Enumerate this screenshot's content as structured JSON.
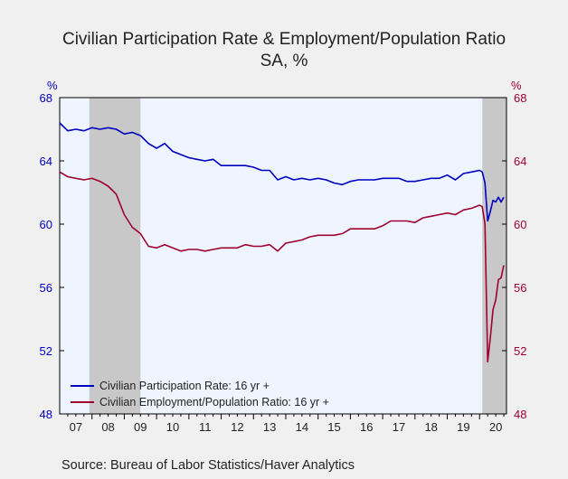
{
  "title": "Civilian Participation Rate & Employment/Population Ratio",
  "subtitle": "SA, %",
  "source": "Source:  Bureau of Labor Statistics/Haver Analytics",
  "colors": {
    "series_participation": "#0000c0",
    "series_employment": "#a00030",
    "plot_background": "#eef5ff",
    "recession_shading": "#c8c8c8",
    "page_background": "#f0f0f0"
  },
  "chart_data": {
    "type": "line",
    "title": "Civilian Participation Rate & Employment/Population Ratio",
    "subtitle": "SA, %",
    "left_axis": {
      "unit": "%",
      "ylim": [
        48,
        68
      ],
      "ticks": [
        "48",
        "52",
        "56",
        "60",
        "64",
        "68"
      ]
    },
    "right_axis": {
      "unit": "%",
      "ylim": [
        48,
        68
      ],
      "ticks": [
        "48",
        "52",
        "56",
        "60",
        "64",
        "68"
      ]
    },
    "xlim": [
      "2007-01",
      "2020-10"
    ],
    "x_tick_labels": [
      "07",
      "08",
      "09",
      "10",
      "11",
      "12",
      "13",
      "14",
      "15",
      "16",
      "17",
      "18",
      "19",
      "20"
    ],
    "recessions": [
      {
        "start": "2007-12",
        "end": "2009-06"
      },
      {
        "start": "2020-02",
        "end": "2020-10"
      }
    ],
    "legend_position": "bottom-left",
    "grid": false,
    "series": [
      {
        "name": "Civilian Participation Rate: 16 yr +",
        "axis": "left",
        "points": [
          [
            "2007-01",
            66.4
          ],
          [
            "2007-04",
            65.9
          ],
          [
            "2007-07",
            66.0
          ],
          [
            "2007-10",
            65.9
          ],
          [
            "2008-01",
            66.1
          ],
          [
            "2008-04",
            66.0
          ],
          [
            "2008-07",
            66.1
          ],
          [
            "2008-10",
            66.0
          ],
          [
            "2009-01",
            65.7
          ],
          [
            "2009-04",
            65.8
          ],
          [
            "2009-07",
            65.6
          ],
          [
            "2009-10",
            65.1
          ],
          [
            "2010-01",
            64.8
          ],
          [
            "2010-04",
            65.1
          ],
          [
            "2010-07",
            64.6
          ],
          [
            "2010-10",
            64.4
          ],
          [
            "2011-01",
            64.2
          ],
          [
            "2011-04",
            64.1
          ],
          [
            "2011-07",
            64.0
          ],
          [
            "2011-10",
            64.1
          ],
          [
            "2012-01",
            63.7
          ],
          [
            "2012-04",
            63.7
          ],
          [
            "2012-07",
            63.7
          ],
          [
            "2012-10",
            63.7
          ],
          [
            "2013-01",
            63.6
          ],
          [
            "2013-04",
            63.4
          ],
          [
            "2013-07",
            63.4
          ],
          [
            "2013-10",
            62.8
          ],
          [
            "2014-01",
            63.0
          ],
          [
            "2014-04",
            62.8
          ],
          [
            "2014-07",
            62.9
          ],
          [
            "2014-10",
            62.8
          ],
          [
            "2015-01",
            62.9
          ],
          [
            "2015-04",
            62.8
          ],
          [
            "2015-07",
            62.6
          ],
          [
            "2015-10",
            62.5
          ],
          [
            "2016-01",
            62.7
          ],
          [
            "2016-04",
            62.8
          ],
          [
            "2016-07",
            62.8
          ],
          [
            "2016-10",
            62.8
          ],
          [
            "2017-01",
            62.9
          ],
          [
            "2017-04",
            62.9
          ],
          [
            "2017-07",
            62.9
          ],
          [
            "2017-10",
            62.7
          ],
          [
            "2018-01",
            62.7
          ],
          [
            "2018-04",
            62.8
          ],
          [
            "2018-07",
            62.9
          ],
          [
            "2018-10",
            62.9
          ],
          [
            "2019-01",
            63.1
          ],
          [
            "2019-04",
            62.8
          ],
          [
            "2019-07",
            63.2
          ],
          [
            "2019-10",
            63.3
          ],
          [
            "2020-01",
            63.4
          ],
          [
            "2020-02",
            63.3
          ],
          [
            "2020-03",
            62.6
          ],
          [
            "2020-04",
            60.2
          ],
          [
            "2020-05",
            60.8
          ],
          [
            "2020-06",
            61.5
          ],
          [
            "2020-07",
            61.4
          ],
          [
            "2020-08",
            61.7
          ],
          [
            "2020-09",
            61.4
          ],
          [
            "2020-10",
            61.7
          ]
        ]
      },
      {
        "name": "Civilian Employment/Population Ratio: 16 yr +",
        "axis": "right",
        "points": [
          [
            "2007-01",
            63.3
          ],
          [
            "2007-04",
            63.0
          ],
          [
            "2007-07",
            62.9
          ],
          [
            "2007-10",
            62.8
          ],
          [
            "2008-01",
            62.9
          ],
          [
            "2008-04",
            62.7
          ],
          [
            "2008-07",
            62.4
          ],
          [
            "2008-10",
            61.9
          ],
          [
            "2009-01",
            60.6
          ],
          [
            "2009-04",
            59.8
          ],
          [
            "2009-07",
            59.4
          ],
          [
            "2009-10",
            58.6
          ],
          [
            "2010-01",
            58.5
          ],
          [
            "2010-04",
            58.7
          ],
          [
            "2010-07",
            58.5
          ],
          [
            "2010-10",
            58.3
          ],
          [
            "2011-01",
            58.4
          ],
          [
            "2011-04",
            58.4
          ],
          [
            "2011-07",
            58.3
          ],
          [
            "2011-10",
            58.4
          ],
          [
            "2012-01",
            58.5
          ],
          [
            "2012-04",
            58.5
          ],
          [
            "2012-07",
            58.5
          ],
          [
            "2012-10",
            58.7
          ],
          [
            "2013-01",
            58.6
          ],
          [
            "2013-04",
            58.6
          ],
          [
            "2013-07",
            58.7
          ],
          [
            "2013-10",
            58.3
          ],
          [
            "2014-01",
            58.8
          ],
          [
            "2014-04",
            58.9
          ],
          [
            "2014-07",
            59.0
          ],
          [
            "2014-10",
            59.2
          ],
          [
            "2015-01",
            59.3
          ],
          [
            "2015-04",
            59.3
          ],
          [
            "2015-07",
            59.3
          ],
          [
            "2015-10",
            59.4
          ],
          [
            "2016-01",
            59.7
          ],
          [
            "2016-04",
            59.7
          ],
          [
            "2016-07",
            59.7
          ],
          [
            "2016-10",
            59.7
          ],
          [
            "2017-01",
            59.9
          ],
          [
            "2017-04",
            60.2
          ],
          [
            "2017-07",
            60.2
          ],
          [
            "2017-10",
            60.2
          ],
          [
            "2018-01",
            60.1
          ],
          [
            "2018-04",
            60.4
          ],
          [
            "2018-07",
            60.5
          ],
          [
            "2018-10",
            60.6
          ],
          [
            "2019-01",
            60.7
          ],
          [
            "2019-04",
            60.6
          ],
          [
            "2019-07",
            60.9
          ],
          [
            "2019-10",
            61.0
          ],
          [
            "2020-01",
            61.2
          ],
          [
            "2020-02",
            61.1
          ],
          [
            "2020-03",
            60.0
          ],
          [
            "2020-04",
            51.3
          ],
          [
            "2020-05",
            52.8
          ],
          [
            "2020-06",
            54.6
          ],
          [
            "2020-07",
            55.2
          ],
          [
            "2020-08",
            56.5
          ],
          [
            "2020-09",
            56.6
          ],
          [
            "2020-10",
            57.4
          ]
        ]
      }
    ]
  }
}
